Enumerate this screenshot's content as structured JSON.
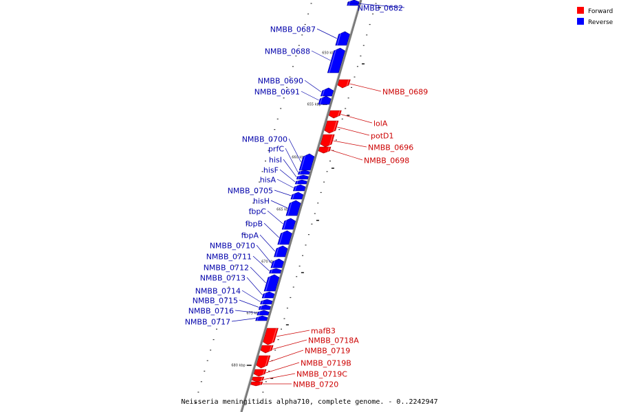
{
  "legend": {
    "forward": "Forward",
    "reverse": "Reverse"
  },
  "colors": {
    "forward": "#ff0000",
    "reverse": "#0000ff",
    "label_forward": "#cc0000",
    "label_reverse": "#0000aa",
    "backbone": "#7a7a7a"
  },
  "caption": "Neisseria meningitidis alpha710, complete genome. - 0..2242947",
  "ticks": [
    "650 kbp",
    "655 kbp",
    "660 kbp",
    "665 kbp",
    "670 kbp",
    "675 kbp",
    "680 kbp"
  ],
  "genes": [
    {
      "name": "NMBB_0682",
      "strand": "reverse"
    },
    {
      "name": "NMBB_0687",
      "strand": "reverse"
    },
    {
      "name": "NMBB_0688",
      "strand": "reverse"
    },
    {
      "name": "NMBB_0689",
      "strand": "forward"
    },
    {
      "name": "NMBB_0690",
      "strand": "reverse"
    },
    {
      "name": "NMBB_0691",
      "strand": "reverse"
    },
    {
      "name": "lolA",
      "strand": "forward"
    },
    {
      "name": "potD1",
      "strand": "forward"
    },
    {
      "name": "NMBB_0696",
      "strand": "forward"
    },
    {
      "name": "NMBB_0698",
      "strand": "forward"
    },
    {
      "name": "NMBB_0700",
      "strand": "reverse"
    },
    {
      "name": "prfC",
      "strand": "reverse"
    },
    {
      "name": "hisI",
      "strand": "reverse"
    },
    {
      "name": "hisF",
      "strand": "reverse"
    },
    {
      "name": "hisA",
      "strand": "reverse"
    },
    {
      "name": "NMBB_0705",
      "strand": "reverse"
    },
    {
      "name": "hisH",
      "strand": "reverse"
    },
    {
      "name": "fbpC",
      "strand": "reverse"
    },
    {
      "name": "fbpB",
      "strand": "reverse"
    },
    {
      "name": "fbpA",
      "strand": "reverse"
    },
    {
      "name": "NMBB_0710",
      "strand": "reverse"
    },
    {
      "name": "NMBB_0711",
      "strand": "reverse"
    },
    {
      "name": "NMBB_0712",
      "strand": "reverse"
    },
    {
      "name": "NMBB_0713",
      "strand": "reverse"
    },
    {
      "name": "NMBB_0714",
      "strand": "reverse"
    },
    {
      "name": "NMBB_0715",
      "strand": "reverse"
    },
    {
      "name": "NMBB_0716",
      "strand": "reverse"
    },
    {
      "name": "NMBB_0717",
      "strand": "reverse"
    },
    {
      "name": "mafB3",
      "strand": "forward"
    },
    {
      "name": "NMBB_0718A",
      "strand": "forward"
    },
    {
      "name": "NMBB_0719",
      "strand": "forward"
    },
    {
      "name": "NMBB_0719B",
      "strand": "forward"
    },
    {
      "name": "NMBB_0719C",
      "strand": "forward"
    },
    {
      "name": "NMBB_0720",
      "strand": "forward"
    }
  ]
}
